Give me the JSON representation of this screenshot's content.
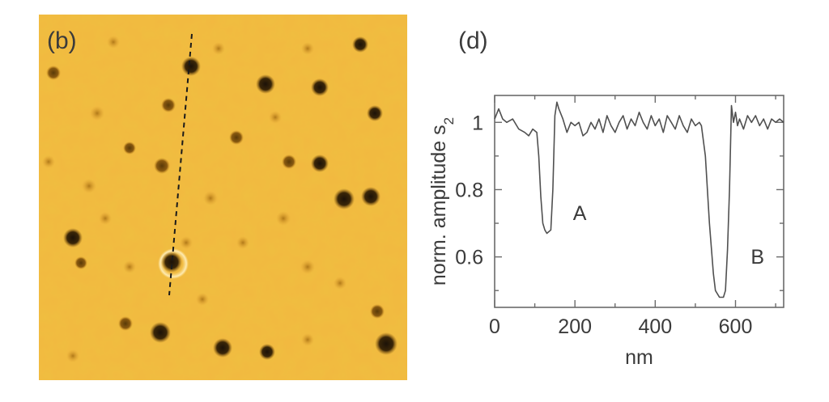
{
  "image_panel": {
    "label": "(b)",
    "background_color": "#f2b840"
  },
  "chart_panel": {
    "label": "(d)"
  },
  "chart_data": {
    "type": "line",
    "xlabel": "nm",
    "ylabel_main": "norm. amplitude s",
    "ylabel_sub": "2",
    "xlim": [
      0,
      720
    ],
    "ylim": [
      0.45,
      1.08
    ],
    "xticks": [
      0,
      200,
      400,
      600
    ],
    "yticks": [
      0.6,
      0.8,
      1
    ],
    "ytick_labels": [
      "0.6",
      "0.8",
      "1"
    ],
    "series": [
      {
        "color": "#505050",
        "x": [
          0,
          10,
          20,
          30,
          45,
          60,
          75,
          85,
          95,
          105,
          110,
          115,
          120,
          125,
          130,
          140,
          145,
          150,
          155,
          160,
          170,
          180,
          190,
          200,
          210,
          220,
          230,
          240,
          250,
          260,
          270,
          280,
          290,
          300,
          310,
          320,
          330,
          340,
          350,
          360,
          370,
          380,
          390,
          400,
          410,
          420,
          430,
          440,
          450,
          460,
          470,
          480,
          490,
          500,
          510,
          515,
          525,
          535,
          545,
          550,
          560,
          570,
          575,
          580,
          585,
          590,
          595,
          600,
          605,
          610,
          620,
          630,
          640,
          650,
          660,
          670,
          680,
          690,
          700,
          710,
          720
        ],
        "y": [
          1.01,
          1.04,
          1.01,
          1.0,
          1.01,
          0.98,
          0.97,
          0.96,
          0.98,
          0.97,
          0.9,
          0.78,
          0.7,
          0.68,
          0.67,
          0.68,
          0.8,
          1.02,
          1.06,
          1.04,
          1.01,
          0.97,
          1.0,
          0.99,
          1.0,
          0.96,
          0.97,
          1.0,
          0.98,
          1.01,
          0.97,
          1.02,
          0.99,
          0.97,
          1.0,
          1.02,
          0.98,
          1.01,
          0.99,
          1.03,
          1.0,
          0.98,
          1.02,
          0.99,
          1.01,
          0.97,
          1.02,
          1.0,
          0.98,
          1.02,
          0.99,
          0.97,
          1.01,
          0.99,
          1.0,
          0.99,
          0.9,
          0.7,
          0.55,
          0.5,
          0.48,
          0.48,
          0.5,
          0.62,
          0.8,
          1.05,
          1.0,
          1.03,
          0.99,
          1.01,
          0.98,
          1.02,
          1.0,
          1.02,
          0.99,
          1.01,
          0.98,
          1.01,
          1.0,
          1.01,
          1.0
        ]
      }
    ],
    "annotations": [
      {
        "text": "A",
        "x": 195,
        "y": 0.71
      },
      {
        "text": "B",
        "x": 638,
        "y": 0.58
      }
    ]
  }
}
